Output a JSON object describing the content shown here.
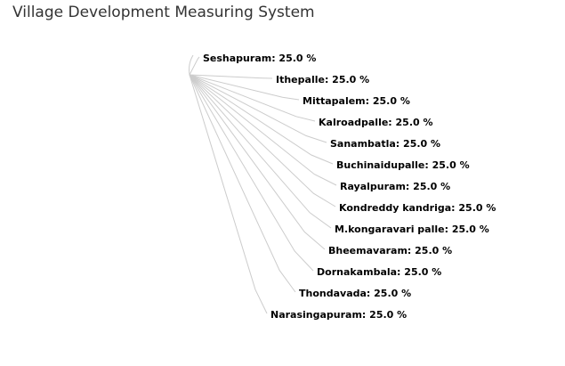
{
  "chart_data": {
    "type": "pie",
    "title": "Village Development Measuring System",
    "value_suffix": " %",
    "categories": [
      "Seshapuram",
      "Ithepalle",
      "Mittapalem",
      "Kalroadpalle",
      "Sanambatla",
      "Buchinaidupalle",
      "Rayalpuram",
      "Kondreddy kandriga",
      "M.kongaravari palle",
      "Bheemavaram",
      "Dornakambala",
      "Thondavada",
      "Narasingapuram"
    ],
    "values": [
      25.0,
      25.0,
      25.0,
      25.0,
      25.0,
      25.0,
      25.0,
      25.0,
      25.0,
      25.0,
      25.0,
      25.0,
      25.0
    ],
    "data_labels": [
      "Seshapuram: 25.0 %",
      "Ithepalle: 25.0 %",
      "Mittapalem: 25.0 %",
      "Kalroadpalle: 25.0 %",
      "Sanambatla: 25.0 %",
      "Buchinaidupalle: 25.0 %",
      "Rayalpuram: 25.0 %",
      "Kondreddy kandriga: 25.0 %",
      "M.kongaravari palle: 25.0 %",
      "Bheemavaram: 25.0 %",
      "Dornakambala: 25.0 %",
      "Thondavada: 25.0 %",
      "Narasingapuram: 25.0 %"
    ],
    "connector_color": "#cccccc",
    "label_color": "#000000",
    "title_color": "#333333"
  }
}
